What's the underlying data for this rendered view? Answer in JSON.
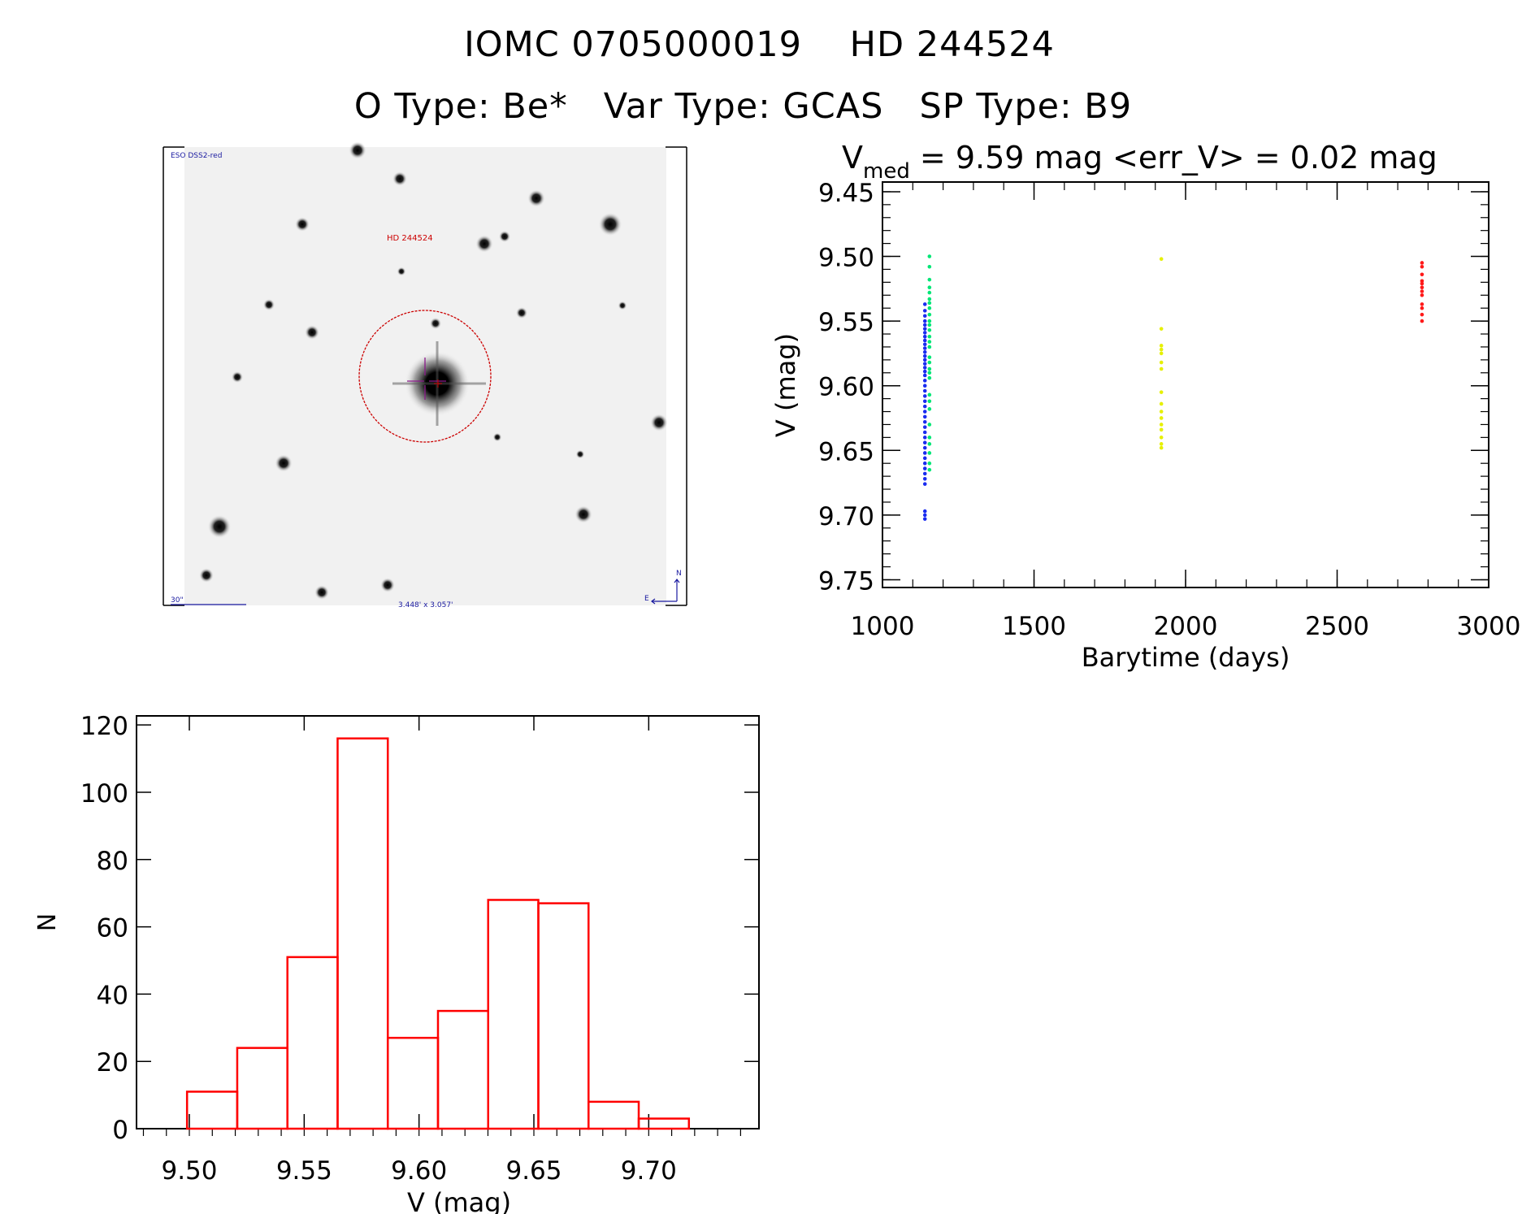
{
  "header": {
    "line1": "IOMC 0705000019    HD 244524",
    "line2": "O Type: Be*   Var Type: GCAS   SP Type: B9"
  },
  "finding_chart": {
    "survey_label": "ESO DSS2-red",
    "target_label": "HD 244524",
    "scale_label": "30\"",
    "fov_label": "3.448' x 3.057'",
    "north_label": "N",
    "east_label": "E",
    "colors": {
      "target": "#cc0000",
      "labels": "#1a1aa0",
      "crosshair": "#8b1a8b"
    }
  },
  "chart_data": [
    {
      "type": "scatter",
      "title_prefix": "V",
      "title_sub": "med",
      "title_rest": " = 9.59 mag <err_V> = 0.02 mag",
      "xlabel": "Barytime (days)",
      "ylabel": "V (mag)",
      "xlim": [
        1000,
        3000
      ],
      "ylim": [
        9.756,
        9.4425
      ],
      "xticks": [
        "1000",
        "1500",
        "2000",
        "2500",
        "3000"
      ],
      "xtick_values": [
        1000,
        1500,
        2000,
        2500,
        3000
      ],
      "yticks": [
        "9.45",
        "9.50",
        "9.55",
        "9.60",
        "9.65",
        "9.70",
        "9.75"
      ],
      "ytick_values": [
        9.45,
        9.5,
        9.55,
        9.6,
        9.65,
        9.7,
        9.75
      ],
      "series": [
        {
          "name": "blue",
          "color": "#1a2cf0",
          "x": 1140,
          "y": [
            9.537,
            9.542,
            9.546,
            9.55,
            9.553,
            9.556,
            9.559,
            9.562,
            9.565,
            9.568,
            9.571,
            9.574,
            9.577,
            9.58,
            9.583,
            9.586,
            9.589,
            9.592,
            9.596,
            9.6,
            9.604,
            9.608,
            9.612,
            9.616,
            9.62,
            9.624,
            9.628,
            9.632,
            9.636,
            9.64,
            9.644,
            9.648,
            9.652,
            9.656,
            9.66,
            9.664,
            9.668,
            9.672,
            9.676,
            9.697,
            9.7,
            9.703
          ]
        },
        {
          "name": "green",
          "color": "#00e676",
          "x": 1155,
          "y": [
            9.5,
            9.508,
            9.518,
            9.524,
            9.528,
            9.533,
            9.536,
            9.54,
            9.545,
            9.55,
            9.553,
            9.557,
            9.562,
            9.566,
            9.57,
            9.578,
            9.582,
            9.587,
            9.59,
            9.594,
            9.607,
            9.612,
            9.618,
            9.63,
            9.64,
            9.645,
            9.652,
            9.66,
            9.665
          ]
        },
        {
          "name": "yellow",
          "color": "#e6f000",
          "x": 1920,
          "y": [
            9.502,
            9.556,
            9.569,
            9.572,
            9.575,
            9.582,
            9.587,
            9.605,
            9.614,
            9.62,
            9.625,
            9.63,
            9.634,
            9.64,
            9.645,
            9.648
          ]
        },
        {
          "name": "red",
          "color": "#ff1a1a",
          "x": 2780,
          "y": [
            9.505,
            9.508,
            9.514,
            9.519,
            9.521,
            9.524,
            9.527,
            9.53,
            9.537,
            9.54,
            9.545,
            9.55
          ]
        }
      ]
    },
    {
      "type": "bar",
      "xlabel": "V (mag)",
      "ylabel": "N",
      "xlim": [
        9.477,
        9.748
      ],
      "ylim": [
        0,
        122.7
      ],
      "bin_start": 9.499,
      "bin_width": 0.02185,
      "values": [
        11,
        24,
        51,
        116,
        27,
        35,
        68,
        67,
        8,
        3
      ],
      "color": "#ff0000",
      "xticks": [
        "9.50",
        "9.55",
        "9.60",
        "9.65",
        "9.70"
      ],
      "xtick_values": [
        9.5,
        9.55,
        9.6,
        9.65,
        9.7
      ],
      "yticks": [
        "0",
        "20",
        "40",
        "60",
        "80",
        "100",
        "120"
      ],
      "ytick_values": [
        0,
        20,
        40,
        60,
        80,
        100,
        120
      ]
    }
  ]
}
